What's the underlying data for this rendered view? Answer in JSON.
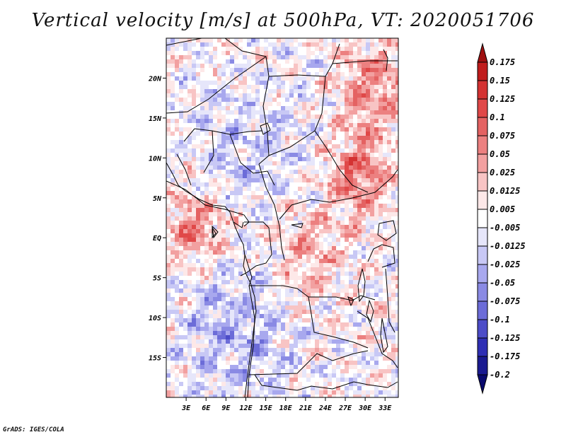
{
  "title": "Vertical velocity [m/s] at 500hPa, VT: 2020051706",
  "credit": "GrADS: IGES/COLA",
  "map": {
    "lon_range": [
      0,
      35
    ],
    "lat_range": [
      -20,
      25
    ],
    "lat_ticks": [
      {
        "label": "20N",
        "value": 20
      },
      {
        "label": "15N",
        "value": 15
      },
      {
        "label": "10N",
        "value": 10
      },
      {
        "label": "5N",
        "value": 5
      },
      {
        "label": "EQ",
        "value": 0
      },
      {
        "label": "5S",
        "value": -5
      },
      {
        "label": "10S",
        "value": -10
      },
      {
        "label": "15S",
        "value": -15
      }
    ],
    "lon_ticks": [
      {
        "label": "3E",
        "value": 3
      },
      {
        "label": "6E",
        "value": 6
      },
      {
        "label": "9E",
        "value": 9
      },
      {
        "label": "12E",
        "value": 12
      },
      {
        "label": "15E",
        "value": 15
      },
      {
        "label": "18E",
        "value": 18
      },
      {
        "label": "21E",
        "value": 21
      },
      {
        "label": "24E",
        "value": 24
      },
      {
        "label": "27E",
        "value": 27
      },
      {
        "label": "30E",
        "value": 30
      },
      {
        "label": "33E",
        "value": 33
      }
    ]
  },
  "colorbar": {
    "levels": [
      "0.175",
      "0.15",
      "0.125",
      "0.1",
      "0.075",
      "0.05",
      "0.025",
      "0.0125",
      "0.005",
      "-0.005",
      "-0.0125",
      "-0.025",
      "-0.05",
      "-0.075",
      "-0.1",
      "-0.125",
      "-0.175",
      "-0.2"
    ],
    "colors": [
      "#9e1010",
      "#c01c1c",
      "#d43232",
      "#e04848",
      "#e46262",
      "#ec8080",
      "#f2a0a0",
      "#f8c4c4",
      "#fde8e8",
      "#ffffff",
      "#e6e6fa",
      "#c8c8f5",
      "#a8a8ee",
      "#8a8ae4",
      "#6c6cd8",
      "#4c4cc8",
      "#2e2eb4",
      "#1a1a90",
      "#0a0a6e"
    ]
  }
}
